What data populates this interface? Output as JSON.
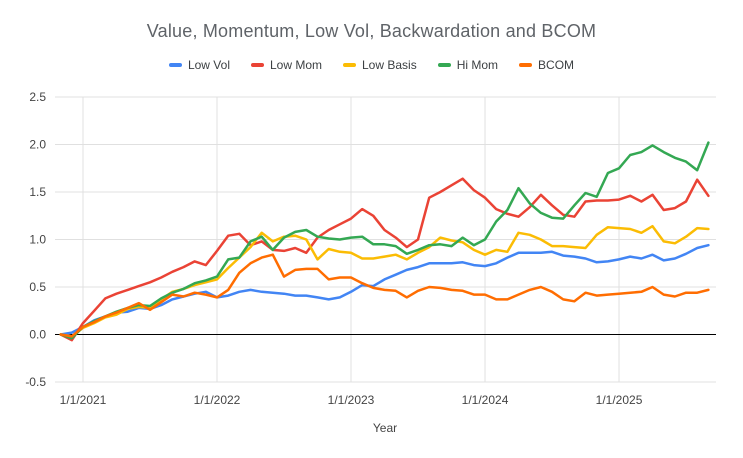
{
  "chart_data": {
    "type": "line",
    "title": "Value, Momentum, Low Vol, Backwardation and BCOM",
    "xlabel": "Year",
    "ylabel": "",
    "ylim": [
      -0.5,
      2.5
    ],
    "grid": true,
    "legend_position": "top",
    "n_points": 59,
    "y_ticks": [
      2.5,
      2.0,
      1.5,
      1.0,
      0.5,
      0.0,
      -0.5
    ],
    "x_ticks": [
      {
        "label": "1/1/2021",
        "month_index": 2
      },
      {
        "label": "1/1/2022",
        "month_index": 14
      },
      {
        "label": "1/1/2023",
        "month_index": 26
      },
      {
        "label": "1/1/2024",
        "month_index": 38
      },
      {
        "label": "1/1/2025",
        "month_index": 50
      }
    ],
    "series": [
      {
        "name": "Low Vol",
        "color": "#4285F4",
        "values": [
          0.0,
          0.02,
          0.08,
          0.15,
          0.19,
          0.23,
          0.24,
          0.28,
          0.27,
          0.31,
          0.37,
          0.4,
          0.43,
          0.45,
          0.39,
          0.41,
          0.45,
          0.47,
          0.45,
          0.44,
          0.43,
          0.41,
          0.41,
          0.39,
          0.37,
          0.39,
          0.45,
          0.52,
          0.51,
          0.58,
          0.63,
          0.68,
          0.71,
          0.75,
          0.75,
          0.75,
          0.76,
          0.73,
          0.72,
          0.75,
          0.81,
          0.86,
          0.86,
          0.86,
          0.87,
          0.83,
          0.82,
          0.8,
          0.76,
          0.77,
          0.79,
          0.82,
          0.8,
          0.84,
          0.78,
          0.8,
          0.85,
          0.91,
          0.94
        ]
      },
      {
        "name": "Low Mom",
        "color": "#EA4335",
        "values": [
          0.0,
          -0.06,
          0.12,
          0.25,
          0.38,
          0.43,
          0.47,
          0.51,
          0.55,
          0.6,
          0.66,
          0.71,
          0.77,
          0.73,
          0.88,
          1.04,
          1.06,
          0.94,
          0.98,
          0.89,
          0.88,
          0.91,
          0.86,
          1.02,
          1.1,
          1.16,
          1.22,
          1.32,
          1.25,
          1.1,
          1.02,
          0.92,
          1.0,
          1.44,
          1.5,
          1.57,
          1.64,
          1.52,
          1.44,
          1.32,
          1.27,
          1.24,
          1.34,
          1.47,
          1.36,
          1.26,
          1.24,
          1.4,
          1.41,
          1.41,
          1.42,
          1.46,
          1.4,
          1.47,
          1.31,
          1.33,
          1.4,
          1.63,
          1.46
        ]
      },
      {
        "name": "Low Basis",
        "color": "#FBBC04",
        "values": [
          0.0,
          -0.02,
          0.07,
          0.12,
          0.18,
          0.21,
          0.27,
          0.29,
          0.28,
          0.37,
          0.45,
          0.48,
          0.52,
          0.55,
          0.58,
          0.7,
          0.81,
          0.92,
          1.07,
          0.98,
          1.03,
          1.04,
          1.0,
          0.79,
          0.9,
          0.87,
          0.86,
          0.8,
          0.8,
          0.82,
          0.84,
          0.79,
          0.86,
          0.92,
          1.02,
          0.99,
          0.97,
          0.89,
          0.84,
          0.89,
          0.87,
          1.07,
          1.05,
          1.0,
          0.93,
          0.93,
          0.92,
          0.91,
          1.05,
          1.13,
          1.12,
          1.11,
          1.07,
          1.14,
          0.98,
          0.96,
          1.03,
          1.12,
          1.11
        ]
      },
      {
        "name": "Hi Mom",
        "color": "#34A853",
        "values": [
          0.0,
          -0.04,
          0.08,
          0.14,
          0.19,
          0.24,
          0.28,
          0.31,
          0.3,
          0.38,
          0.44,
          0.48,
          0.54,
          0.57,
          0.61,
          0.79,
          0.81,
          0.98,
          1.03,
          0.89,
          1.02,
          1.08,
          1.1,
          1.03,
          1.01,
          1.0,
          1.02,
          1.03,
          0.95,
          0.95,
          0.93,
          0.85,
          0.89,
          0.94,
          0.95,
          0.93,
          1.02,
          0.94,
          1.0,
          1.19,
          1.31,
          1.54,
          1.38,
          1.28,
          1.23,
          1.22,
          1.36,
          1.49,
          1.45,
          1.7,
          1.75,
          1.89,
          1.92,
          1.99,
          1.92,
          1.86,
          1.82,
          1.73,
          2.02
        ]
      },
      {
        "name": "BCOM",
        "color": "#FF6D01",
        "values": [
          0.0,
          -0.02,
          0.08,
          0.13,
          0.19,
          0.23,
          0.28,
          0.33,
          0.26,
          0.34,
          0.42,
          0.4,
          0.44,
          0.42,
          0.39,
          0.47,
          0.65,
          0.75,
          0.81,
          0.84,
          0.61,
          0.68,
          0.69,
          0.69,
          0.58,
          0.6,
          0.6,
          0.54,
          0.49,
          0.47,
          0.46,
          0.39,
          0.46,
          0.5,
          0.49,
          0.47,
          0.46,
          0.42,
          0.42,
          0.37,
          0.37,
          0.42,
          0.47,
          0.5,
          0.45,
          0.37,
          0.35,
          0.44,
          0.41,
          0.42,
          0.43,
          0.44,
          0.45,
          0.5,
          0.42,
          0.4,
          0.44,
          0.44,
          0.47
        ]
      }
    ],
    "colors": {
      "grid": "#e0e0e0",
      "zero_line": "#000000",
      "tick_text": "#444444",
      "title_text": "#5f6368",
      "legend_text": "#3c4043"
    }
  }
}
